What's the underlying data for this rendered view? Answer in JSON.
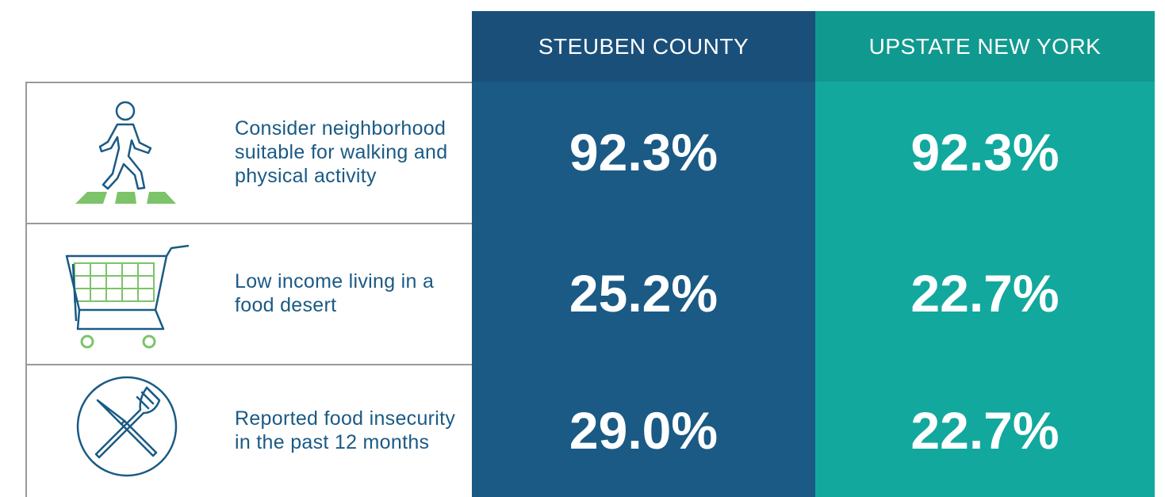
{
  "header": {
    "columns": [
      "STEUBEN COUNTY",
      "UPSTATE NEW YORK"
    ]
  },
  "table": {
    "rows": [
      [
        "Consider neighborhood suitable for walking and physical activity",
        "92.3%",
        "92.3%"
      ],
      [
        "Low income living in a food desert",
        "25.2%",
        "22.7%"
      ],
      [
        "Reported food insecurity in the past 12 months",
        "29.0%",
        "22.7%"
      ]
    ]
  }
}
